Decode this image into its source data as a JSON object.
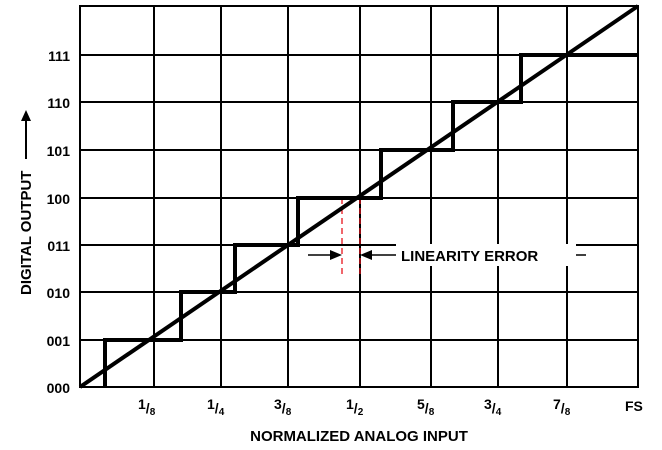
{
  "diagram": {
    "x_axis_title": "NORMALIZED ANALOG INPUT",
    "y_axis_title": "DIGITAL OUTPUT",
    "y_axis_arrow": "arrow-up-icon",
    "annotation": "LINEARITY ERROR",
    "x_tick_labels": [
      {
        "num": "1",
        "den": "8"
      },
      {
        "num": "1",
        "den": "4"
      },
      {
        "num": "3",
        "den": "8"
      },
      {
        "num": "1",
        "den": "2"
      },
      {
        "num": "5",
        "den": "8"
      },
      {
        "num": "3",
        "den": "4"
      },
      {
        "num": "7",
        "den": "8"
      }
    ],
    "x_end_label": "FS",
    "y_tick_labels": [
      "000",
      "001",
      "010",
      "011",
      "100",
      "101",
      "110",
      "111"
    ],
    "colors": {
      "grid": "#000000",
      "transfer": "#000000",
      "ideal_dashed": "#e8141c"
    }
  }
}
